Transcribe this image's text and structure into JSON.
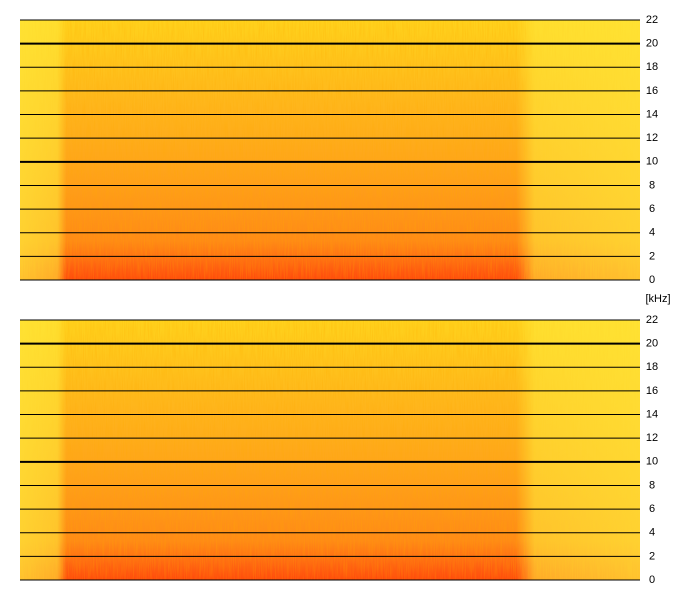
{
  "chart_data": [
    {
      "type": "spectrogram",
      "ylim": [
        0,
        22
      ],
      "yticks": [
        0,
        2,
        4,
        6,
        8,
        10,
        12,
        14,
        16,
        18,
        20,
        22
      ],
      "grid": true,
      "bold_gridlines": [
        10,
        20
      ],
      "ylabel": "[kHz]"
    },
    {
      "type": "spectrogram",
      "ylim": [
        0,
        22
      ],
      "yticks": [
        0,
        2,
        4,
        6,
        8,
        10,
        12,
        14,
        16,
        18,
        20,
        22
      ],
      "grid": true,
      "bold_gridlines": [
        10,
        20
      ]
    }
  ]
}
